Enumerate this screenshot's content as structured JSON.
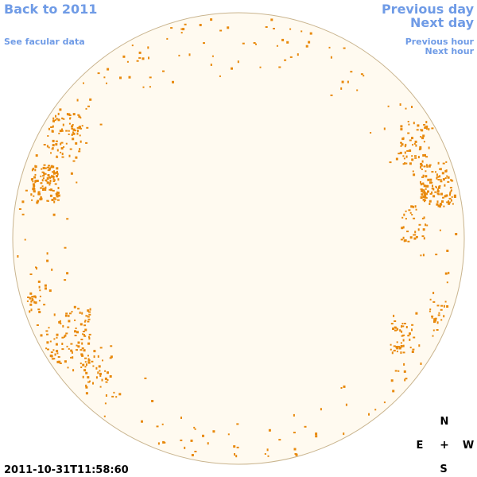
{
  "links": {
    "back": "Back to 2011",
    "facular": "See facular data",
    "previous_day": "Previous day",
    "next_day": "Next day",
    "previous_hour": "Previous hour",
    "next_hour": "Next hour"
  },
  "timestamp": "2011-10-31T11:58:60",
  "compass": {
    "north": "N",
    "east": "E",
    "center": "+",
    "west": "W",
    "south": "S"
  }
}
